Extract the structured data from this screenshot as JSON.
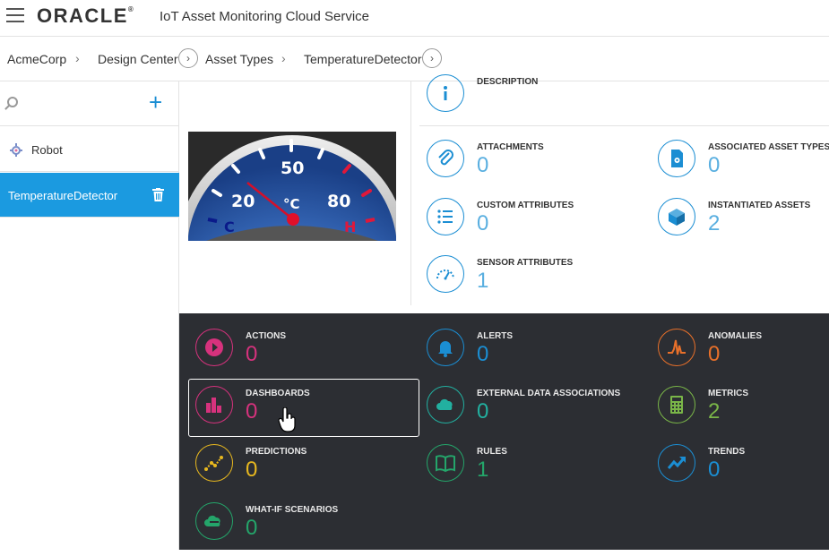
{
  "header": {
    "logo": "ORACLE",
    "logo_mark": "®",
    "app_title": "IoT Asset Monitoring Cloud Service"
  },
  "breadcrumb": [
    {
      "label": "AcmeCorp"
    },
    {
      "label": "Design Center"
    },
    {
      "label": "Asset Types"
    },
    {
      "label": "TemperatureDetector"
    }
  ],
  "sidebar": {
    "items": [
      {
        "label": "Robot",
        "icon": "gear-icon"
      },
      {
        "label": "TemperatureDetector",
        "icon": "trash-icon",
        "active": true
      }
    ]
  },
  "gauge": {
    "labels": [
      "20",
      "50",
      "80"
    ],
    "unit": "°C",
    "cold": "C",
    "hot": "H"
  },
  "details": {
    "description": {
      "title": "DESCRIPTION"
    },
    "attachments": {
      "title": "ATTACHMENTS",
      "value": "0"
    },
    "associated": {
      "title": "ASSOCIATED ASSET TYPES",
      "value": "0"
    },
    "custom": {
      "title": "CUSTOM ATTRIBUTES",
      "value": "0"
    },
    "instantiated": {
      "title": "INSTANTIATED ASSETS",
      "value": "2"
    },
    "sensor": {
      "title": "SENSOR ATTRIBUTES",
      "value": "1"
    }
  },
  "features": {
    "actions": {
      "title": "ACTIONS",
      "value": "0",
      "color": "#d6327d"
    },
    "alerts": {
      "title": "ALERTS",
      "value": "0",
      "color": "#1b8ed3"
    },
    "anomalies": {
      "title": "ANOMALIES",
      "value": "0",
      "color": "#e8702a"
    },
    "dashboards": {
      "title": "DASHBOARDS",
      "value": "0",
      "color": "#d6327d"
    },
    "external": {
      "title": "EXTERNAL DATA ASSOCIATIONS",
      "value": "0",
      "color": "#22b0a0"
    },
    "metrics": {
      "title": "METRICS",
      "value": "2",
      "color": "#7ab648"
    },
    "predictions": {
      "title": "PREDICTIONS",
      "value": "0",
      "color": "#e8b81f"
    },
    "rules": {
      "title": "RULES",
      "value": "1",
      "color": "#24a56a"
    },
    "trends": {
      "title": "TRENDS",
      "value": "0",
      "color": "#1b8ed3"
    },
    "whatif": {
      "title": "WHAT-IF SCENARIOS",
      "value": "0",
      "color": "#24a56a"
    }
  }
}
